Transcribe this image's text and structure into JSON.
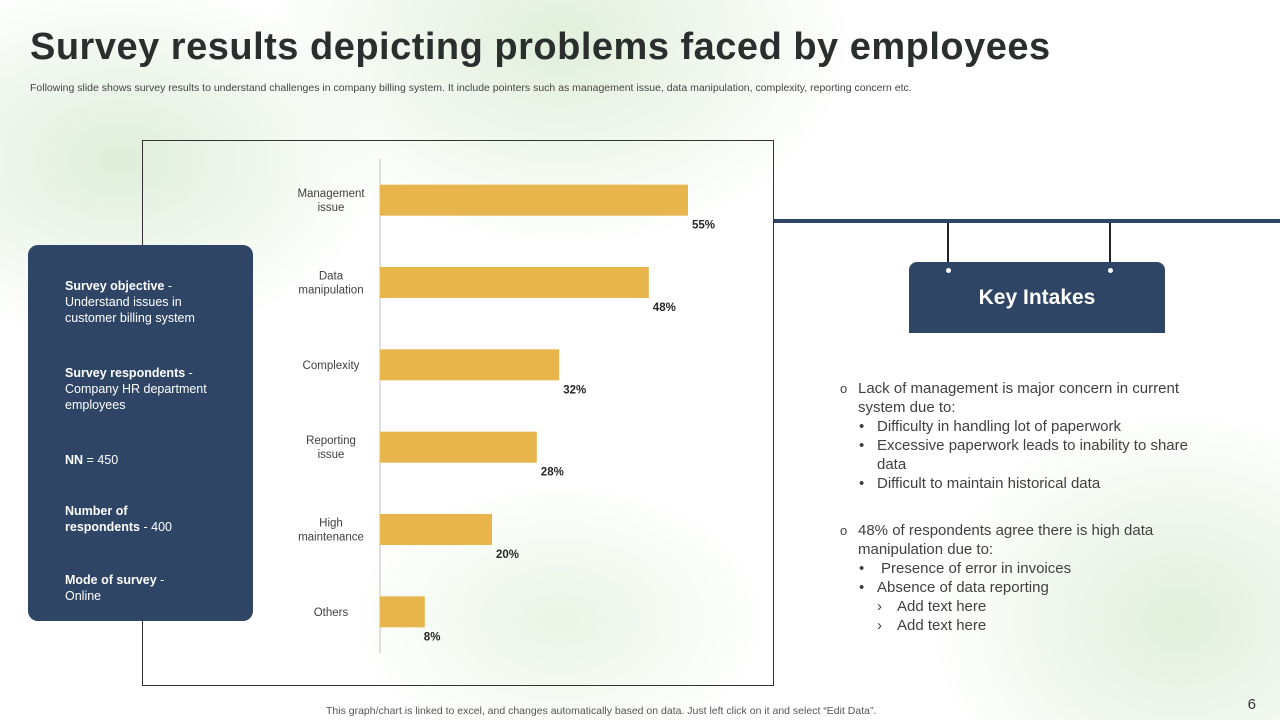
{
  "header": {
    "title": "Survey results depicting problems faced by employees",
    "subtitle": "Following slide shows survey results to understand challenges in company billing system. It include pointers such as management issue, data manipulation, complexity, reporting concern etc."
  },
  "info_card": {
    "items": [
      {
        "label": "Survey objective",
        "sep": " - ",
        "text": "Understand issues in customer billing system"
      },
      {
        "label": "Survey respondents",
        "sep": " - ",
        "text": "Company HR department employees"
      },
      {
        "label": "NN",
        "sep": " = ",
        "text": "450"
      },
      {
        "label": "Number of respondents",
        "sep": " - ",
        "text": "400"
      },
      {
        "label": "Mode of survey",
        "sep": " - ",
        "text": "Online"
      }
    ]
  },
  "chart_data": {
    "type": "bar",
    "orientation": "horizontal",
    "categories": [
      "Management issue",
      "Data manipulation",
      "Complexity",
      "Reporting issue",
      "High maintenance",
      "Others"
    ],
    "values": [
      55,
      48,
      32,
      28,
      20,
      8
    ],
    "value_labels": [
      "55%",
      "48%",
      "32%",
      "28%",
      "20%",
      "8%"
    ],
    "unit": "%",
    "xlim": [
      0,
      75
    ],
    "title": "",
    "xlabel": "",
    "ylabel": "",
    "bar_color": "#e8b54d",
    "grid": false
  },
  "key_intakes": {
    "heading": "Key Intakes",
    "points": [
      {
        "text": "Lack of management is major concern in current system due to:",
        "bullets": [
          {
            "text": "Difficulty in handling lot of paperwork"
          },
          {
            "text": "Excessive paperwork leads to inability to share data"
          },
          {
            "text": "Difficult to maintain historical data"
          }
        ]
      },
      {
        "text": "48% of respondents agree there is high data manipulation due to:",
        "bullets": [
          {
            "text": "Presence of error in invoices"
          },
          {
            "text": "Absence of data reporting",
            "sub": [
              "Add text here",
              "Add text here"
            ]
          }
        ]
      }
    ]
  },
  "footer": {
    "note": "This graph/chart is linked to excel, and changes automatically based on data. Just left click on it and select “Edit Data”.",
    "page_number": "6"
  },
  "colors": {
    "navy": "#2e4566",
    "bar": "#e8b54d",
    "title": "#2a2f2d"
  }
}
